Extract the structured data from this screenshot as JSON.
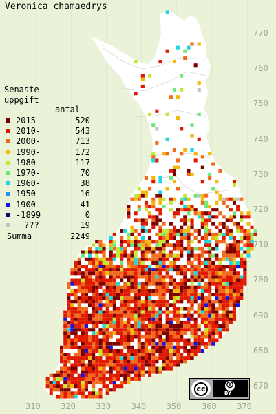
{
  "title": "Veronica chamaedrys",
  "legend": {
    "heading_line1": "Senaste",
    "heading_line2": "uppgift",
    "count_header": "antal",
    "entries": [
      {
        "label": "2015-",
        "count": "520",
        "color": "#7a0000"
      },
      {
        "label": "2010-",
        "count": "543",
        "color": "#e01a00"
      },
      {
        "label": "2000-",
        "count": "713",
        "color": "#f26a1b"
      },
      {
        "label": "1990-",
        "count": "172",
        "color": "#f3b80d"
      },
      {
        "label": "1980-",
        "count": "117",
        "color": "#c2e838"
      },
      {
        "label": "1970-",
        "count": "70",
        "color": "#6ee87a"
      },
      {
        "label": "1960-",
        "count": "38",
        "color": "#21d6e0"
      },
      {
        "label": "1950-",
        "count": "16",
        "color": "#1f8ff0"
      },
      {
        "label": "1900-",
        "count": "41",
        "color": "#1515e0"
      },
      {
        "label": "-1899",
        "count": "0",
        "color": "#0a0a6e"
      },
      {
        "label": "???",
        "count": "19",
        "color": "#c4c4c4"
      }
    ],
    "total_label": "Summa",
    "total_count": "2249"
  },
  "axes": {
    "y_ticks": [
      "770",
      "760",
      "750",
      "740",
      "730",
      "720",
      "710",
      "700",
      "690",
      "680",
      "670"
    ],
    "x_ticks": [
      "310",
      "320",
      "330",
      "340",
      "350",
      "360",
      "370"
    ]
  },
  "license": {
    "left_mark": "cc",
    "by_icon": "person-icon",
    "by_text": "BY"
  },
  "map_colors": {
    "land": "#ffffff",
    "background": "#eaf3d8",
    "grid": "#d8e2c8"
  }
}
